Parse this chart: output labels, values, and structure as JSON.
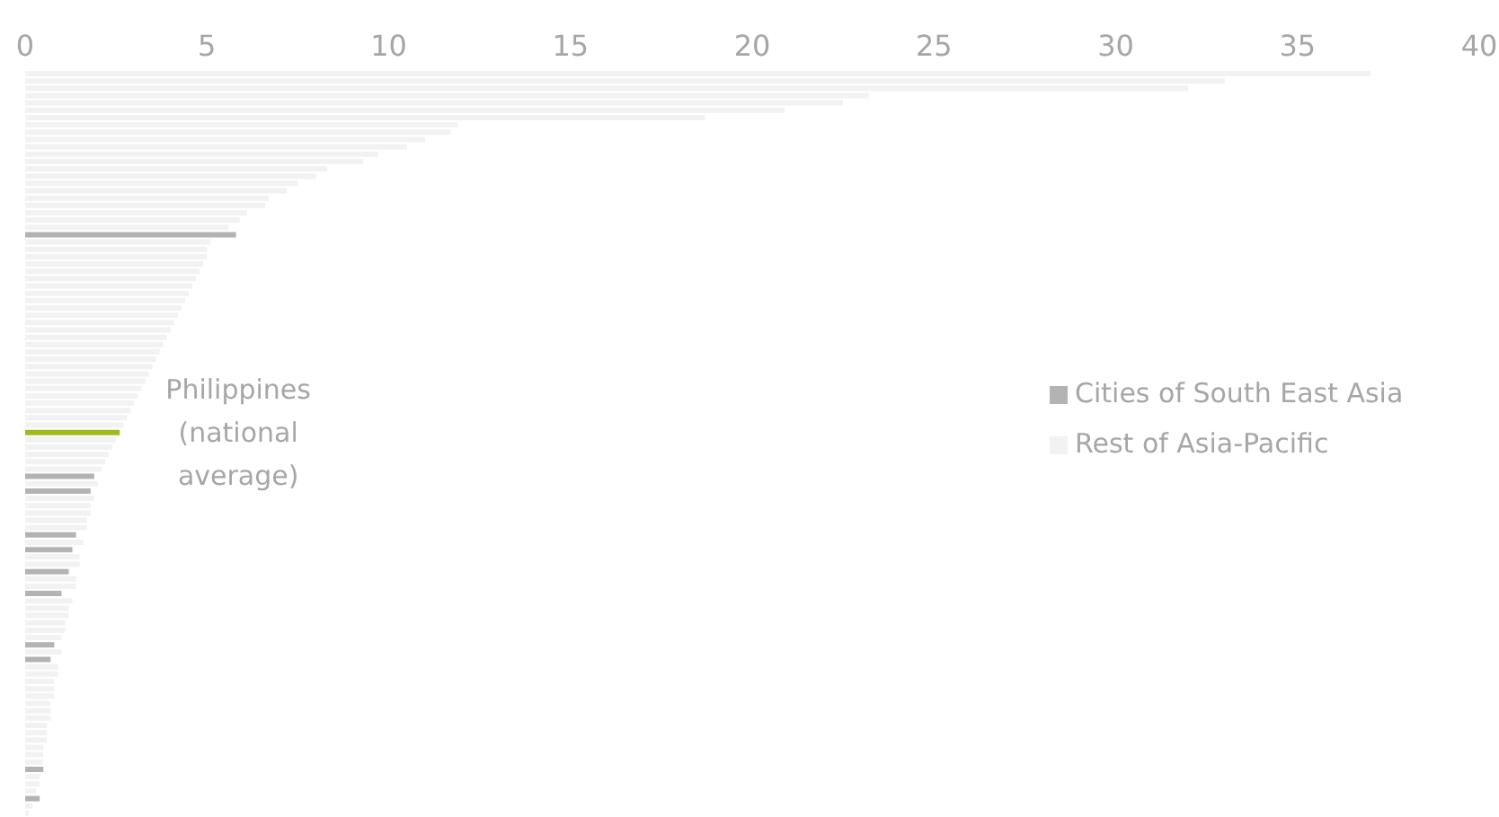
{
  "chart_data": {
    "type": "bar",
    "orientation": "horizontal",
    "stacked": true,
    "categories": [
      null,
      null,
      null,
      null,
      null,
      null,
      null,
      null,
      null,
      null,
      null,
      null,
      null,
      null,
      null,
      null,
      null,
      null,
      null,
      null,
      null,
      null,
      null,
      null,
      null,
      null,
      null,
      null,
      null,
      null,
      null,
      null,
      null,
      null,
      null,
      null,
      null,
      null,
      null,
      null,
      null,
      null,
      null,
      null,
      null,
      null,
      null,
      null,
      null,
      null,
      null,
      null,
      null,
      null,
      null,
      null,
      null,
      null,
      null,
      null,
      null,
      null,
      null,
      null,
      null,
      null,
      null,
      null,
      null,
      null,
      null,
      null,
      null,
      null,
      null,
      null,
      null,
      null,
      null,
      null,
      null,
      null,
      null,
      null,
      null,
      null,
      null,
      null,
      null,
      null,
      null,
      null,
      null,
      null,
      null,
      null,
      null,
      null,
      null,
      null,
      null,
      null
    ],
    "series": [
      {
        "name": "Cities of South East Asia",
        "color": "#b3b3b3",
        "values": [
          null,
          null,
          null,
          null,
          null,
          null,
          null,
          null,
          null,
          null,
          null,
          null,
          null,
          null,
          null,
          null,
          null,
          null,
          null,
          null,
          null,
          null,
          5.8,
          null,
          null,
          null,
          null,
          null,
          null,
          null,
          null,
          null,
          null,
          null,
          null,
          null,
          null,
          null,
          null,
          null,
          null,
          null,
          null,
          null,
          null,
          null,
          null,
          null,
          null,
          null,
          null,
          null,
          null,
          null,
          null,
          1.9,
          null,
          1.8,
          null,
          null,
          null,
          null,
          null,
          1.4,
          null,
          1.3,
          null,
          null,
          1.2,
          null,
          null,
          1.0,
          null,
          null,
          null,
          null,
          null,
          null,
          0.8,
          null,
          0.7,
          null,
          null,
          null,
          null,
          null,
          null,
          null,
          null,
          null,
          null,
          null,
          null,
          null,
          null,
          0.5,
          null,
          null,
          null,
          0.4,
          null,
          null
        ]
      },
      {
        "name": "Rest of Asia-Pacific",
        "color": "#f2f2f2",
        "values": [
          37.0,
          33.0,
          32.0,
          23.2,
          22.5,
          20.9,
          18.7,
          11.9,
          11.7,
          11.0,
          10.5,
          9.7,
          9.3,
          8.3,
          8.0,
          7.5,
          7.2,
          6.7,
          6.6,
          6.1,
          5.9,
          5.6,
          null,
          5.1,
          5.0,
          5.0,
          4.9,
          4.8,
          4.7,
          4.6,
          4.5,
          4.4,
          4.3,
          4.2,
          4.1,
          4.0,
          3.9,
          3.8,
          3.7,
          3.6,
          3.5,
          3.4,
          3.3,
          3.2,
          3.1,
          3.0,
          2.9,
          2.8,
          2.7,
          null,
          2.5,
          2.4,
          2.3,
          2.2,
          2.1,
          null,
          2.0,
          null,
          1.9,
          1.8,
          1.8,
          1.7,
          1.7,
          null,
          1.6,
          null,
          1.5,
          1.5,
          null,
          1.4,
          1.4,
          null,
          1.3,
          1.2,
          1.2,
          1.1,
          1.1,
          1.0,
          null,
          1.0,
          null,
          0.9,
          0.9,
          0.8,
          0.8,
          0.8,
          0.7,
          0.7,
          0.7,
          0.6,
          0.6,
          0.6,
          0.5,
          0.5,
          0.5,
          null,
          0.4,
          0.4,
          0.3,
          null,
          0.2,
          0.1
        ]
      },
      {
        "color": "#a3b81c",
        "values": [
          null,
          null,
          null,
          null,
          null,
          null,
          null,
          null,
          null,
          null,
          null,
          null,
          null,
          null,
          null,
          null,
          null,
          null,
          null,
          null,
          null,
          null,
          null,
          null,
          null,
          null,
          null,
          null,
          null,
          null,
          null,
          null,
          null,
          null,
          null,
          null,
          null,
          null,
          null,
          null,
          null,
          null,
          null,
          null,
          null,
          null,
          null,
          null,
          null,
          2.6,
          null,
          null,
          null,
          null,
          null,
          null,
          null,
          null,
          null,
          null,
          null,
          null,
          null,
          null,
          null,
          null,
          null,
          null,
          null,
          null,
          null,
          null,
          null,
          null,
          null,
          null,
          null,
          null,
          null,
          null,
          null,
          null,
          null,
          null,
          null,
          null,
          null,
          null,
          null,
          null,
          null,
          null,
          null,
          null,
          null,
          null,
          null,
          null,
          null,
          null,
          null,
          null
        ]
      }
    ],
    "xlim": [
      0,
      40
    ],
    "xticks": [
      0,
      5,
      10,
      15,
      20,
      25,
      30,
      35,
      40
    ],
    "legend": "right",
    "annotations": [
      {
        "text": "Philippines (national average)",
        "x": 2.6
      }
    ]
  }
}
